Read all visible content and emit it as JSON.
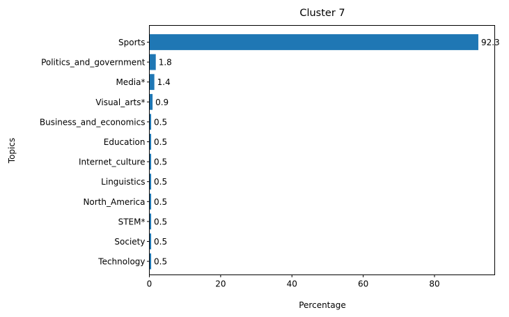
{
  "chart_data": {
    "type": "bar",
    "orientation": "horizontal",
    "title": "Cluster 7",
    "xlabel": "Percentage",
    "ylabel": "Topics",
    "categories": [
      "Sports",
      "Politics_and_government",
      "Media*",
      "Visual_arts*",
      "Business_and_economics",
      "Education",
      "Internet_culture",
      "Linguistics",
      "North_America",
      "STEM*",
      "Society",
      "Technology"
    ],
    "values": [
      92.3,
      1.8,
      1.4,
      0.9,
      0.5,
      0.5,
      0.5,
      0.5,
      0.5,
      0.5,
      0.5,
      0.5
    ],
    "value_labels": [
      "92.3",
      "1.8",
      "1.4",
      "0.9",
      "0.5",
      "0.5",
      "0.5",
      "0.5",
      "0.5",
      "0.5",
      "0.5",
      "0.5"
    ],
    "xlim": [
      0,
      96.9
    ],
    "xticks": [
      0,
      20,
      40,
      60,
      80
    ],
    "grid": false,
    "bar_color": "#1f77b4"
  }
}
